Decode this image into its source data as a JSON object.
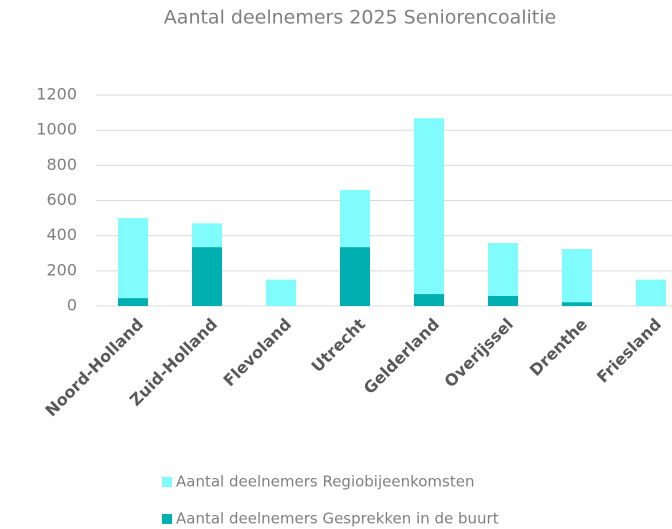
{
  "chart_data": {
    "type": "stacked_bar",
    "title": "Aantal deelnemers 2025 Seniorencoalitie",
    "categories": [
      "Noord-Holland",
      "Zuid-Holland",
      "Flevoland",
      "Utrecht",
      "Gelderland",
      "Overijssel",
      "Drenthe",
      "Friesland"
    ],
    "series": [
      {
        "name": "Aantal deelnemers Regiobijeenkomsten",
        "color": "#80fcfc",
        "values": [
          455,
          135,
          150,
          325,
          1000,
          300,
          302,
          150
        ]
      },
      {
        "name": "Aantal deelnemers Gesprekken in de buurt",
        "color": "#00b0b0",
        "values": [
          45,
          335,
          0,
          335,
          68,
          58,
          22,
          0
        ]
      }
    ],
    "ylim": [
      0,
      1200
    ],
    "yticks": [
      0,
      200,
      400,
      600,
      800,
      1000,
      1200
    ],
    "grid": true
  }
}
